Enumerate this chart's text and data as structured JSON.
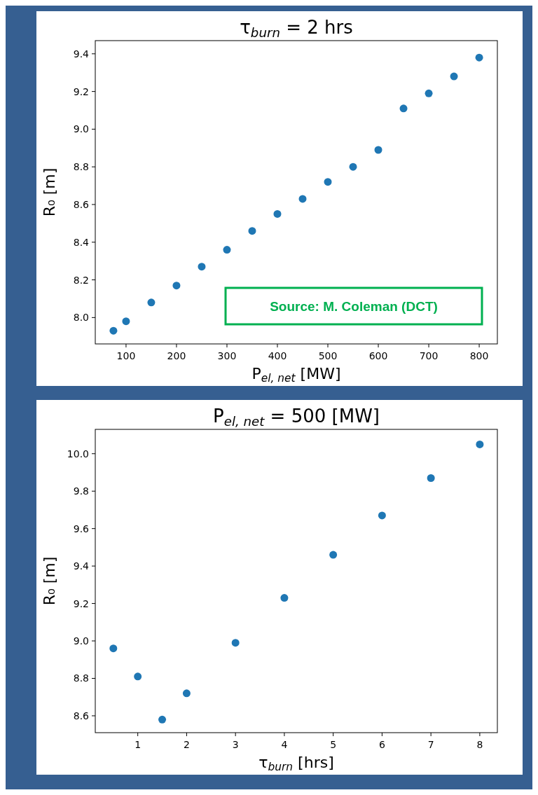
{
  "chart_data": [
    {
      "type": "scatter",
      "title": "τ$_{burn}$ = 2 hrs",
      "xlabel": "P$_{el, net}$ [MW]",
      "ylabel": "R₀ [m]",
      "x": [
        75,
        100,
        150,
        200,
        250,
        300,
        350,
        400,
        450,
        500,
        550,
        600,
        650,
        700,
        750,
        800
      ],
      "values": [
        7.93,
        7.98,
        8.08,
        8.17,
        8.27,
        8.36,
        8.46,
        8.55,
        8.63,
        8.72,
        8.8,
        8.89,
        9.11,
        9.19,
        9.28,
        9.38
      ],
      "color": "#1f77b4",
      "marker": "circle",
      "xlim": [
        39,
        836
      ],
      "ylim": [
        7.86,
        9.47
      ],
      "xticks": [
        100,
        200,
        300,
        400,
        500,
        600,
        700,
        800
      ],
      "yticks": [
        {
          "value": 8.0,
          "label": "8.0"
        },
        {
          "value": 8.2,
          "label": "8.2"
        },
        {
          "value": 8.4,
          "label": "8.4"
        },
        {
          "value": 8.6,
          "label": "8.6"
        },
        {
          "value": 8.8,
          "label": "8.8"
        },
        {
          "value": 9.0,
          "label": "9.0"
        },
        {
          "value": 9.2,
          "label": "9.2"
        },
        {
          "value": 9.4,
          "label": "9.4"
        }
      ],
      "annotations": [
        "Source: M. Coleman (DCT)"
      ]
    },
    {
      "type": "scatter",
      "title": "P$_{el, net}$ = 500 [MW]",
      "xlabel": "τ$_{burn}$ [hrs]",
      "ylabel": "R₀ [m]",
      "x": [
        0.5,
        1,
        1.5,
        2,
        3,
        4,
        5,
        6,
        7,
        8
      ],
      "values": [
        8.96,
        8.81,
        8.58,
        8.72,
        8.99,
        9.23,
        9.46,
        9.67,
        9.87,
        10.05
      ],
      "color": "#1f77b4",
      "marker": "circle",
      "xlim": [
        0.13,
        8.36
      ],
      "ylim": [
        8.51,
        10.13
      ],
      "xticks": [
        1,
        2,
        3,
        4,
        5,
        6,
        7,
        8
      ],
      "yticks": [
        8.6,
        8.8,
        {
          "value": 9.0,
          "label": "9.0"
        },
        9.2,
        9.4,
        9.6,
        9.8,
        {
          "value": 10.0,
          "label": "10.0"
        }
      ]
    }
  ]
}
